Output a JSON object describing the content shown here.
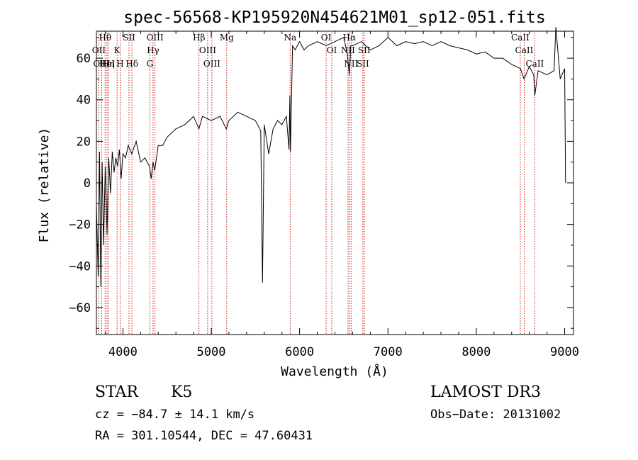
{
  "chart_data": {
    "type": "line",
    "title": "spec-56568-KP195920N454621M01_sp12-051.fits",
    "xlabel": "Wavelength (Å)",
    "ylabel": "Flux (relative)",
    "xlim": [
      3700,
      9100
    ],
    "ylim": [
      -73,
      73
    ],
    "xticks": [
      4000,
      5000,
      6000,
      7000,
      8000,
      9000
    ],
    "xtick_labels": [
      "4000",
      "5000",
      "6000",
      "7000",
      "8000",
      "9000"
    ],
    "yticks": [
      -60,
      -40,
      -20,
      0,
      20,
      40,
      60
    ],
    "ytick_labels": [
      "−60",
      "−40",
      "−20",
      "0",
      "20",
      "40",
      "60"
    ],
    "grid": false,
    "line_color": "#000000",
    "marker_color": "#cc0000",
    "series": [
      {
        "x": [
          3700,
          3720,
          3735,
          3750,
          3765,
          3780,
          3800,
          3820,
          3840,
          3860,
          3880,
          3900,
          3920,
          3940,
          3960,
          3980,
          4000,
          4030,
          4060,
          4100,
          4150,
          4200,
          4250,
          4300,
          4320,
          4340,
          4360,
          4400,
          4450,
          4500,
          4600,
          4700,
          4800,
          4860,
          4900,
          5000,
          5100,
          5170,
          5200,
          5300,
          5400,
          5500,
          5560,
          5580,
          5600,
          5650,
          5700,
          5750,
          5800,
          5850,
          5880,
          5890,
          5896,
          5920,
          5950,
          6000,
          6050,
          6100,
          6200,
          6300,
          6400,
          6500,
          6540,
          6563,
          6580,
          6600,
          6700,
          6800,
          6900,
          7000,
          7100,
          7200,
          7300,
          7400,
          7500,
          7600,
          7700,
          7800,
          7900,
          8000,
          8100,
          8200,
          8300,
          8400,
          8500,
          8540,
          8600,
          8650,
          8662,
          8700,
          8800,
          8880,
          8900,
          8950,
          9000,
          9010
        ],
        "y": [
          -10,
          -45,
          15,
          -50,
          10,
          -30,
          8,
          -25,
          12,
          -5,
          15,
          5,
          12,
          8,
          16,
          2,
          14,
          12,
          18,
          14,
          20,
          10,
          12,
          8,
          2,
          10,
          6,
          18,
          18,
          22,
          26,
          28,
          32,
          26,
          32,
          30,
          32,
          26,
          30,
          34,
          32,
          30,
          25,
          -48,
          28,
          14,
          26,
          30,
          28,
          32,
          16,
          42,
          15,
          66,
          64,
          68,
          64,
          66,
          68,
          66,
          68,
          70,
          62,
          52,
          66,
          66,
          68,
          64,
          66,
          70,
          66,
          68,
          67,
          68,
          66,
          68,
          66,
          65,
          64,
          62,
          63,
          60,
          60,
          57,
          55,
          50,
          56,
          52,
          42,
          54,
          52,
          54,
          75,
          50,
          55,
          0
        ]
      }
    ],
    "lines": [
      {
        "label": "Hθ",
        "wl": 3798
      },
      {
        "label": "OII",
        "wl": 3727
      },
      {
        "label": "OIII",
        "wl": 3760
      },
      {
        "label": "HeI",
        "wl": 3820
      },
      {
        "label": "Hη",
        "wl": 3835
      },
      {
        "label": "K",
        "wl": 3934
      },
      {
        "label": "H",
        "wl": 3969
      },
      {
        "label": "SII",
        "wl": 4069
      },
      {
        "label": "Hδ",
        "wl": 4102
      },
      {
        "label": "OIII",
        "wl": 4363
      },
      {
        "label": "Hγ",
        "wl": 4341
      },
      {
        "label": "G",
        "wl": 4305
      },
      {
        "label": "Hβ",
        "wl": 4861
      },
      {
        "label": "OIII",
        "wl": 4959
      },
      {
        "label": "OIII",
        "wl": 5007
      },
      {
        "label": "Mg",
        "wl": 5175
      },
      {
        "label": "Na",
        "wl": 5893
      },
      {
        "label": "OI",
        "wl": 6300
      },
      {
        "label": "OI",
        "wl": 6364
      },
      {
        "label": "Hα",
        "wl": 6563
      },
      {
        "label": "NII",
        "wl": 6548
      },
      {
        "label": "NII",
        "wl": 6583
      },
      {
        "label": "SII",
        "wl": 6716
      },
      {
        "label": "SII",
        "wl": 6731
      },
      {
        "label": "CaII",
        "wl": 8498
      },
      {
        "label": "CaII",
        "wl": 8542
      },
      {
        "label": "CaII",
        "wl": 8662
      }
    ]
  },
  "info": {
    "class_label": "STAR",
    "subclass": "K5",
    "survey": "LAMOST DR3",
    "cz": "cz = −84.7 ± 14.1 km/s",
    "obs_date": "Obs−Date: 20131002",
    "coords": "RA = 301.10544, DEC =  47.60431"
  }
}
